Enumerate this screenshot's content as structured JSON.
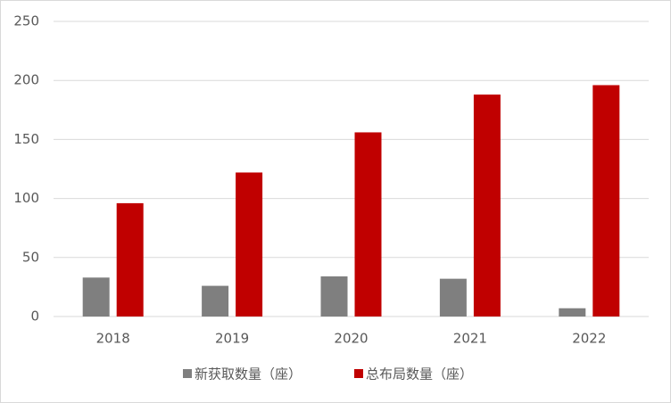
{
  "chart_data": {
    "type": "bar",
    "categories": [
      "2018",
      "2019",
      "2020",
      "2021",
      "2022"
    ],
    "series": [
      {
        "name": "新获取数量（座）",
        "color": "#7f7f7f",
        "values": [
          33,
          26,
          34,
          32,
          7
        ]
      },
      {
        "name": "总布局数量（座）",
        "color": "#c00000",
        "values": [
          96,
          122,
          156,
          188,
          196
        ]
      }
    ],
    "ylim": [
      0,
      250
    ],
    "yticks": [
      0,
      50,
      100,
      150,
      200,
      250
    ],
    "grid": true,
    "legend": "bottom"
  }
}
